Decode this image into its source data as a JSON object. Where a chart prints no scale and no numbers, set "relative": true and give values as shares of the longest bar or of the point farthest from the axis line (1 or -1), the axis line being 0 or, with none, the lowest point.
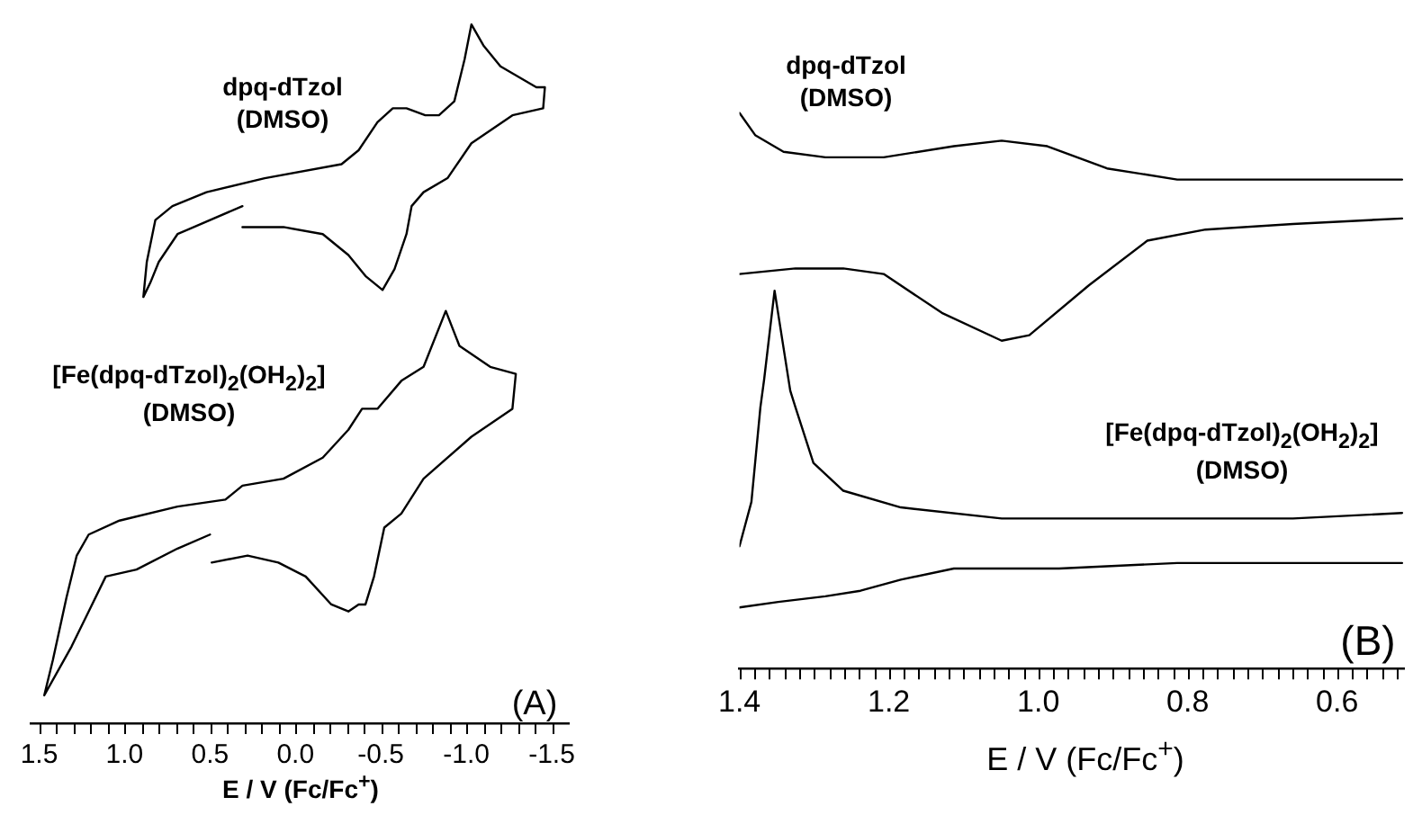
{
  "chart_data": [
    {
      "type": "line",
      "relative": true,
      "xlabel": "E / V (Fc/Fc$^{+}$)",
      "xlim": [
        1.55,
        -1.6
      ],
      "xticks": [
        {
          "value": 1.5,
          "label": "1.5"
        },
        {
          "value": 1.4,
          "label": null
        },
        {
          "value": 1.3,
          "label": null
        },
        {
          "value": 1.2,
          "label": null
        },
        {
          "value": 1.1,
          "label": null
        },
        {
          "value": 1.0,
          "label": "1.0"
        },
        {
          "value": 0.9,
          "label": null
        },
        {
          "value": 0.8,
          "label": null
        },
        {
          "value": 0.7,
          "label": null
        },
        {
          "value": 0.6,
          "label": null
        },
        {
          "value": 0.5,
          "label": "0.5"
        },
        {
          "value": 0.4,
          "label": null
        },
        {
          "value": 0.3,
          "label": null
        },
        {
          "value": 0.2,
          "label": null
        },
        {
          "value": 0.1,
          "label": null
        },
        {
          "value": 0,
          "label": "0.0"
        },
        {
          "value": -0.1,
          "label": null
        },
        {
          "value": -0.2,
          "label": null
        },
        {
          "value": -0.3,
          "label": null
        },
        {
          "value": -0.4,
          "label": null
        },
        {
          "value": -0.5,
          "label": "-0.5"
        },
        {
          "value": -0.6,
          "label": null
        },
        {
          "value": -0.7,
          "label": null
        },
        {
          "value": -0.8,
          "label": null
        },
        {
          "value": -0.9,
          "label": null
        },
        {
          "value": -1.0,
          "label": "-1.0"
        },
        {
          "value": -1.1,
          "label": null
        },
        {
          "value": -1.2,
          "label": null
        },
        {
          "value": -1.3,
          "label": null
        },
        {
          "value": -1.4,
          "label": null
        },
        {
          "value": -1.5,
          "label": "-1.5"
        }
      ],
      "tick_labels": "x",
      "grid": false,
      "legend": false,
      "marker": "none",
      "line_style": "solid",
      "annotations": [
        "dpq-dTzol\n(DMSO)",
        "[Fe(dpq-dTzol)$_{2}$(OH$_{2}$)$_{2}$]\n(DMSO)",
        "(A)"
      ],
      "series": [
        {
          "type": "line",
          "color": "#000000",
          "x": [
            0.31,
            0.69,
            0.8,
            0.85,
            0.89,
            0.87,
            0.82,
            0.72,
            0.52,
            0.18,
            -0.27,
            -0.37,
            -0.48,
            -0.57,
            -0.65,
            -0.76,
            -0.84,
            -0.93,
            -0.99,
            -1.03,
            -1.1,
            -1.2,
            -1.27,
            -1.41,
            -1.46,
            -1.45,
            -1.27,
            -1.03,
            -0.89,
            -0.75,
            -0.68,
            -0.65,
            -0.58,
            -0.51,
            -0.41,
            -0.31,
            -0.16,
            0.07,
            0.31
          ],
          "values": [
            0.74,
            0.7,
            0.66,
            0.63,
            0.61,
            0.66,
            0.72,
            0.74,
            0.76,
            0.78,
            0.8,
            0.82,
            0.86,
            0.88,
            0.88,
            0.87,
            0.87,
            0.89,
            0.95,
            1.0,
            0.97,
            0.94,
            0.93,
            0.91,
            0.91,
            0.88,
            0.87,
            0.83,
            0.78,
            0.76,
            0.74,
            0.7,
            0.65,
            0.62,
            0.64,
            0.67,
            0.7,
            0.71,
            0.71
          ]
        },
        {
          "type": "line",
          "color": "#000000",
          "x": [
            0.5,
            0.69,
            0.93,
            1.11,
            1.21,
            1.31,
            1.47,
            1.42,
            1.34,
            1.28,
            1.21,
            1.03,
            0.69,
            0.41,
            0.31,
            0.07,
            -0.16,
            -0.31,
            -0.39,
            -0.48,
            -0.62,
            -0.75,
            -0.88,
            -0.96,
            -1.14,
            -1.29,
            -1.27,
            -1.03,
            -0.75,
            -0.62,
            -0.52,
            -0.46,
            -0.41,
            -0.37,
            -0.31,
            -0.21,
            -0.06,
            0.1,
            0.28,
            0.49
          ],
          "values": [
            0.27,
            0.25,
            0.22,
            0.21,
            0.16,
            0.11,
            0.04,
            0.09,
            0.18,
            0.24,
            0.27,
            0.29,
            0.31,
            0.32,
            0.34,
            0.35,
            0.38,
            0.42,
            0.45,
            0.45,
            0.49,
            0.51,
            0.59,
            0.54,
            0.51,
            0.5,
            0.45,
            0.41,
            0.35,
            0.3,
            0.28,
            0.21,
            0.17,
            0.17,
            0.16,
            0.17,
            0.21,
            0.23,
            0.24,
            0.23
          ]
        }
      ]
    },
    {
      "type": "line",
      "relative": true,
      "xlabel": "E / V (Fc/Fc$^{+}$)",
      "xlim": [
        1.4,
        0.51
      ],
      "xticks": [
        {
          "value": 1.4,
          "label": "1.4"
        },
        {
          "value": 1.38,
          "label": null
        },
        {
          "value": 1.36,
          "label": null
        },
        {
          "value": 1.34,
          "label": null
        },
        {
          "value": 1.32,
          "label": null
        },
        {
          "value": 1.3,
          "label": null
        },
        {
          "value": 1.28,
          "label": null
        },
        {
          "value": 1.26,
          "label": null
        },
        {
          "value": 1.24,
          "label": null
        },
        {
          "value": 1.22,
          "label": null
        },
        {
          "value": 1.2,
          "label": "1.2"
        },
        {
          "value": 1.18,
          "label": null
        },
        {
          "value": 1.16,
          "label": null
        },
        {
          "value": 1.14,
          "label": null
        },
        {
          "value": 1.12,
          "label": null
        },
        {
          "value": 1.1,
          "label": null
        },
        {
          "value": 1.08,
          "label": null
        },
        {
          "value": 1.06,
          "label": null
        },
        {
          "value": 1.04,
          "label": null
        },
        {
          "value": 1.02,
          "label": null
        },
        {
          "value": 1.0,
          "label": "1.0"
        },
        {
          "value": 0.98,
          "label": null
        },
        {
          "value": 0.96,
          "label": null
        },
        {
          "value": 0.94,
          "label": null
        },
        {
          "value": 0.92,
          "label": null
        },
        {
          "value": 0.9,
          "label": null
        },
        {
          "value": 0.88,
          "label": null
        },
        {
          "value": 0.86,
          "label": null
        },
        {
          "value": 0.84,
          "label": null
        },
        {
          "value": 0.82,
          "label": null
        },
        {
          "value": 0.8,
          "label": "0.8"
        },
        {
          "value": 0.78,
          "label": null
        },
        {
          "value": 0.76,
          "label": null
        },
        {
          "value": 0.74,
          "label": null
        },
        {
          "value": 0.72,
          "label": null
        },
        {
          "value": 0.7,
          "label": null
        },
        {
          "value": 0.68,
          "label": null
        },
        {
          "value": 0.66,
          "label": null
        },
        {
          "value": 0.64,
          "label": null
        },
        {
          "value": 0.62,
          "label": null
        },
        {
          "value": 0.6,
          "label": "0.6"
        },
        {
          "value": 0.58,
          "label": null
        },
        {
          "value": 0.56,
          "label": null
        },
        {
          "value": 0.54,
          "label": null
        },
        {
          "value": 0.52,
          "label": null
        }
      ],
      "tick_labels": "x",
      "grid": false,
      "legend": false,
      "marker": "none",
      "line_style": "solid",
      "annotations": [
        "dpq-dTzol\n(DMSO)",
        "[Fe(dpq-dTzol)$_{2}$(OH$_{2}$)$_{2}$]\n(DMSO)",
        "(B)"
      ],
      "series": [
        {
          "type": "line",
          "color": "#000000",
          "x": [
            1.4,
            1.379,
            1.341,
            1.285,
            1.207,
            1.113,
            1.049,
            0.988,
            0.908,
            0.814,
            0.736,
            0.513
          ],
          "values": [
            1.0,
            0.96,
            0.93,
            0.92,
            0.92,
            0.94,
            0.95,
            0.94,
            0.9,
            0.88,
            0.88,
            0.88
          ]
        },
        {
          "type": "line",
          "color": "#000000",
          "x": [
            1.4,
            1.325,
            1.261,
            1.207,
            1.129,
            1.049,
            1.012,
            0.932,
            0.854,
            0.776,
            0.659,
            0.513
          ],
          "values": [
            0.71,
            0.72,
            0.72,
            0.71,
            0.64,
            0.59,
            0.6,
            0.69,
            0.77,
            0.79,
            0.8,
            0.81
          ]
        },
        {
          "type": "line",
          "color": "#000000",
          "x": [
            1.4,
            1.384,
            1.372,
            1.367,
            1.353,
            1.332,
            1.325,
            1.301,
            1.261,
            1.184,
            1.049,
            0.814,
            0.659,
            0.513
          ],
          "values": [
            0.22,
            0.3,
            0.47,
            0.52,
            0.68,
            0.5,
            0.47,
            0.37,
            0.32,
            0.29,
            0.27,
            0.27,
            0.27,
            0.28
          ]
        },
        {
          "type": "line",
          "color": "#000000",
          "x": [
            1.4,
            1.348,
            1.285,
            1.238,
            1.184,
            1.113,
            0.972,
            0.814,
            0.513
          ],
          "values": [
            0.11,
            0.12,
            0.13,
            0.14,
            0.16,
            0.18,
            0.18,
            0.19,
            0.19
          ]
        }
      ]
    }
  ]
}
